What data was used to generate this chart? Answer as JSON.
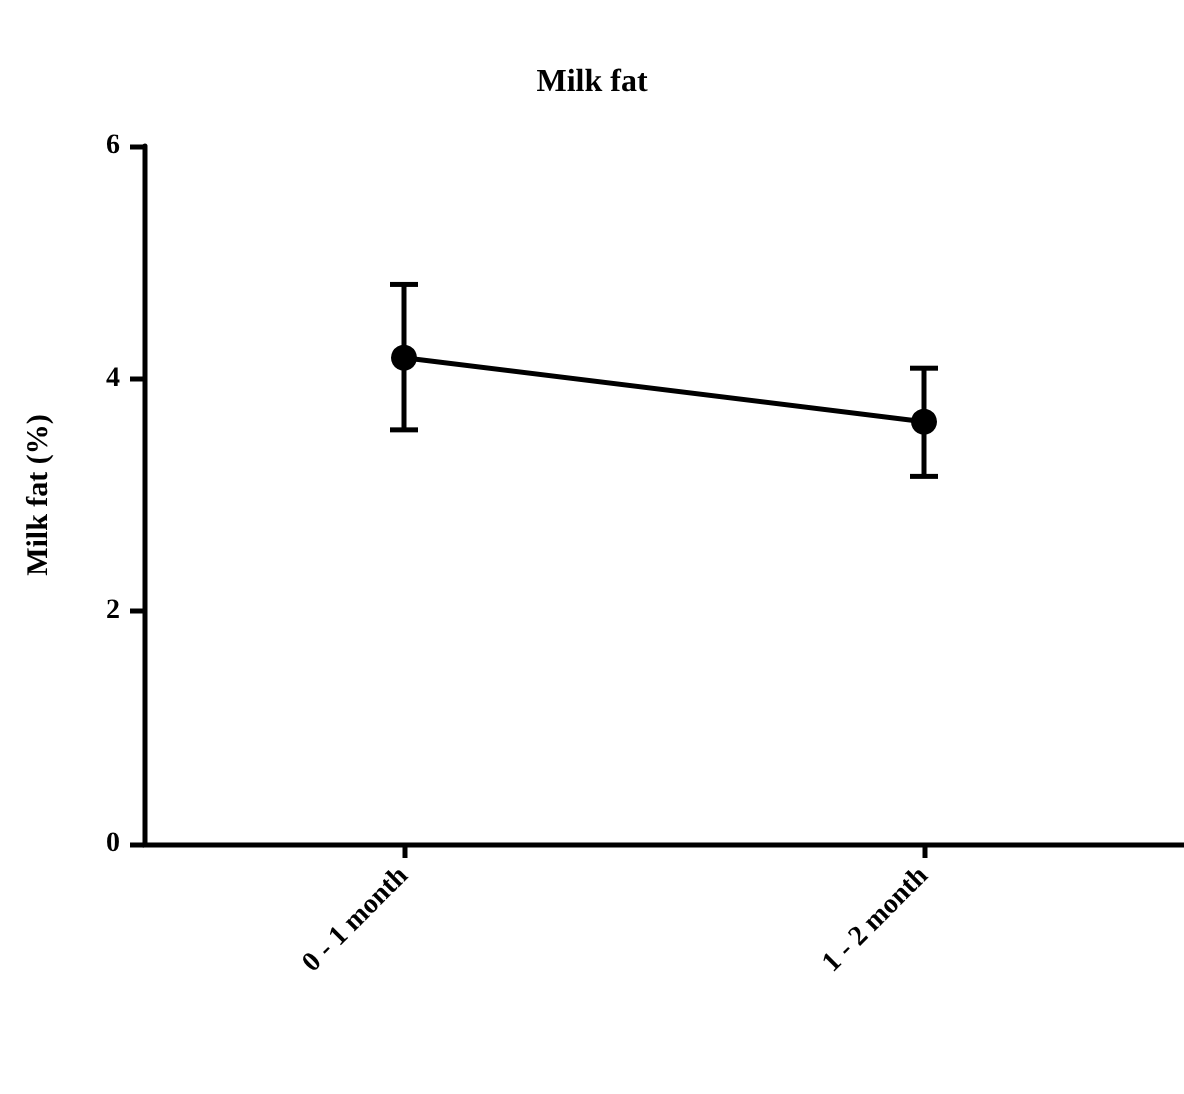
{
  "chart_data": {
    "type": "line",
    "title": "Milk fat",
    "ylabel": "Milk fat (%)",
    "categories": [
      "0 - 1 month",
      "1 - 2 month"
    ],
    "series": [
      {
        "color": "#000000",
        "values": [
          4.18,
          3.63
        ],
        "errors": [
          [
            3.56,
            4.81
          ],
          [
            3.16,
            4.09
          ]
        ]
      }
    ],
    "ylim": [
      0,
      6
    ],
    "yticks": [
      0,
      2,
      4,
      6
    ],
    "marker": "circle",
    "line_style": "solid",
    "grid": false
  }
}
